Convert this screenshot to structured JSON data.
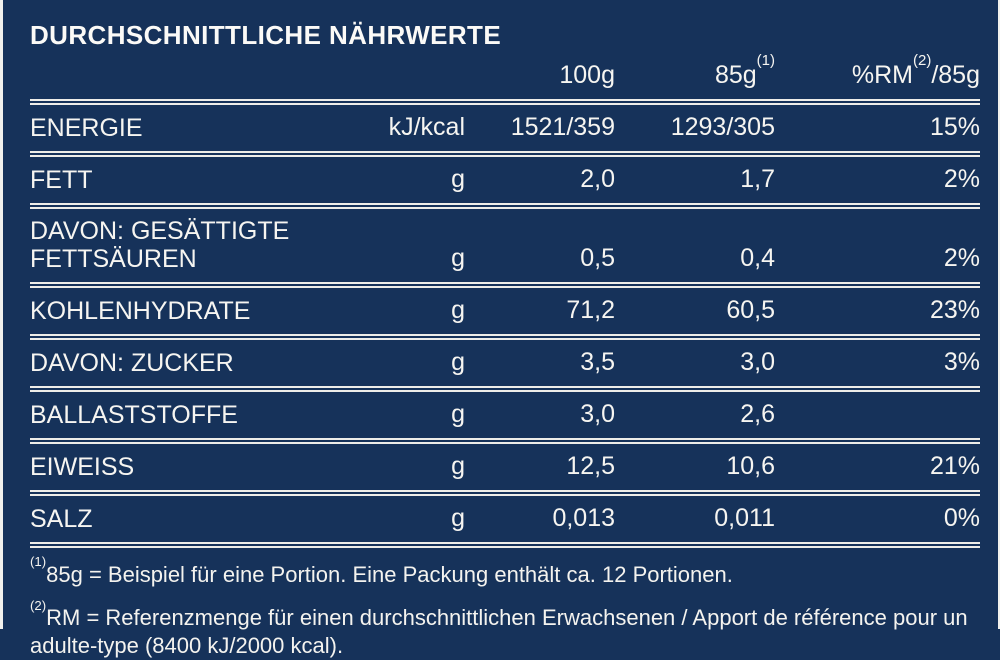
{
  "title": "DURCHSCHNITTLICHE NÄHRWERTE",
  "colors": {
    "background": "#16325a",
    "text": "#f6f5f1",
    "rule": "#eeede9"
  },
  "table": {
    "header": {
      "col_100g": "100g",
      "col_85g_base": "85g",
      "col_85g_sup": "(1)",
      "col_rm_base": "%RM",
      "col_rm_sup": "(2)",
      "col_rm_rest": "/85g"
    },
    "rows": [
      {
        "label": "ENERGIE",
        "unit": "kJ/kcal",
        "per_100g": "1521/359",
        "per_85g": "1293/305",
        "pct_rm": "15%"
      },
      {
        "label": "FETT",
        "unit": "g",
        "per_100g": "2,0",
        "per_85g": "1,7",
        "pct_rm": "2%"
      },
      {
        "label": "DAVON: GESÄTTIGTE FETTSÄUREN",
        "unit": "g",
        "per_100g": "0,5",
        "per_85g": "0,4",
        "pct_rm": "2%"
      },
      {
        "label": "KOHLENHYDRATE",
        "unit": "g",
        "per_100g": "71,2",
        "per_85g": "60,5",
        "pct_rm": "23%"
      },
      {
        "label": "DAVON: ZUCKER",
        "unit": "g",
        "per_100g": "3,5",
        "per_85g": "3,0",
        "pct_rm": "3%"
      },
      {
        "label": "BALLASTSTOFFE",
        "unit": "g",
        "per_100g": "3,0",
        "per_85g": "2,6",
        "pct_rm": ""
      },
      {
        "label": "EIWEISS",
        "unit": "g",
        "per_100g": "12,5",
        "per_85g": "10,6",
        "pct_rm": "21%"
      },
      {
        "label": "SALZ",
        "unit": "g",
        "per_100g": "0,013",
        "per_85g": "0,011",
        "pct_rm": "0%"
      }
    ]
  },
  "footnotes": [
    {
      "sup": "(1)",
      "text": "85g = Beispiel für eine Portion. Eine Packung enthält ca. 12 Portionen."
    },
    {
      "sup": "(2)",
      "text": "RM = Referenzmenge für einen durchschnittlichen Erwachsenen / Apport de référence pour un adulte-type (8400 kJ/2000 kcal)."
    }
  ]
}
